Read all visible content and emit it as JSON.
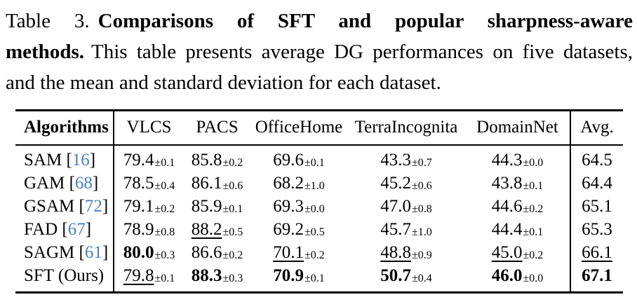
{
  "caption": {
    "label": "Table 3.",
    "title": "Comparisons of SFT and popular sharpness-aware methods.",
    "body": "This table presents average DG performances on five datasets, and the mean and standard deviation for each dataset."
  },
  "table": {
    "columns": [
      "Algorithms",
      "VLCS",
      "PACS",
      "OfficeHome",
      "TerraIncognita",
      "DomainNet",
      "Avg."
    ],
    "cite_open": " [",
    "cite_close": "]",
    "rows": [
      {
        "name": "SAM",
        "cite": "16",
        "cells": [
          {
            "value": "79.4",
            "std": "±0.1",
            "style": "plain"
          },
          {
            "value": "85.8",
            "std": "±0.2",
            "style": "plain"
          },
          {
            "value": "69.6",
            "std": "±0.1",
            "style": "plain"
          },
          {
            "value": "43.3",
            "std": "±0.7",
            "style": "plain"
          },
          {
            "value": "44.3",
            "std": "±0.0",
            "style": "plain"
          }
        ],
        "avg": {
          "value": "64.5",
          "style": "plain"
        }
      },
      {
        "name": "GAM",
        "cite": "68",
        "cells": [
          {
            "value": "78.5",
            "std": "±0.4",
            "style": "plain"
          },
          {
            "value": "86.1",
            "std": "±0.6",
            "style": "plain"
          },
          {
            "value": "68.2",
            "std": "±1.0",
            "style": "plain"
          },
          {
            "value": "45.2",
            "std": "±0.6",
            "style": "plain"
          },
          {
            "value": "43.8",
            "std": "±0.1",
            "style": "plain"
          }
        ],
        "avg": {
          "value": "64.4",
          "style": "plain"
        }
      },
      {
        "name": "GSAM",
        "cite": "72",
        "cells": [
          {
            "value": "79.1",
            "std": "±0.2",
            "style": "plain"
          },
          {
            "value": "85.9",
            "std": "±0.1",
            "style": "plain"
          },
          {
            "value": "69.3",
            "std": "±0.0",
            "style": "plain"
          },
          {
            "value": "47.0",
            "std": "±0.8",
            "style": "plain"
          },
          {
            "value": "44.6",
            "std": "±0.2",
            "style": "plain"
          }
        ],
        "avg": {
          "value": "65.1",
          "style": "plain"
        }
      },
      {
        "name": "FAD",
        "cite": "67",
        "cells": [
          {
            "value": "78.9",
            "std": "±0.8",
            "style": "plain"
          },
          {
            "value": "88.2",
            "std": "±0.5",
            "style": "underline"
          },
          {
            "value": "69.2",
            "std": "±0.5",
            "style": "plain"
          },
          {
            "value": "45.7",
            "std": "±1.0",
            "style": "plain"
          },
          {
            "value": "44.4",
            "std": "±0.1",
            "style": "plain"
          }
        ],
        "avg": {
          "value": "65.3",
          "style": "plain"
        }
      },
      {
        "name": "SAGM",
        "cite": "61",
        "cells": [
          {
            "value": "80.0",
            "std": "±0.3",
            "style": "bold"
          },
          {
            "value": "86.6",
            "std": "±0.2",
            "style": "plain"
          },
          {
            "value": "70.1",
            "std": "±0.2",
            "style": "underline"
          },
          {
            "value": "48.8",
            "std": "±0.9",
            "style": "underline"
          },
          {
            "value": "45.0",
            "std": "±0.2",
            "style": "underline"
          }
        ],
        "avg": {
          "value": "66.1",
          "style": "underline"
        }
      },
      {
        "name": "SFT (Ours)",
        "cite": null,
        "cells": [
          {
            "value": "79.8",
            "std": "±0.1",
            "style": "underline"
          },
          {
            "value": "88.3",
            "std": "±0.3",
            "style": "bold"
          },
          {
            "value": "70.9",
            "std": "±0.1",
            "style": "bold"
          },
          {
            "value": "50.7",
            "std": "±0.4",
            "style": "bold"
          },
          {
            "value": "46.0",
            "std": "±0.0",
            "style": "bold"
          }
        ],
        "avg": {
          "value": "67.1",
          "style": "bold"
        }
      }
    ]
  },
  "colors": {
    "citation": "#4a80c0",
    "text": "#000000",
    "background": "#ffffff"
  }
}
